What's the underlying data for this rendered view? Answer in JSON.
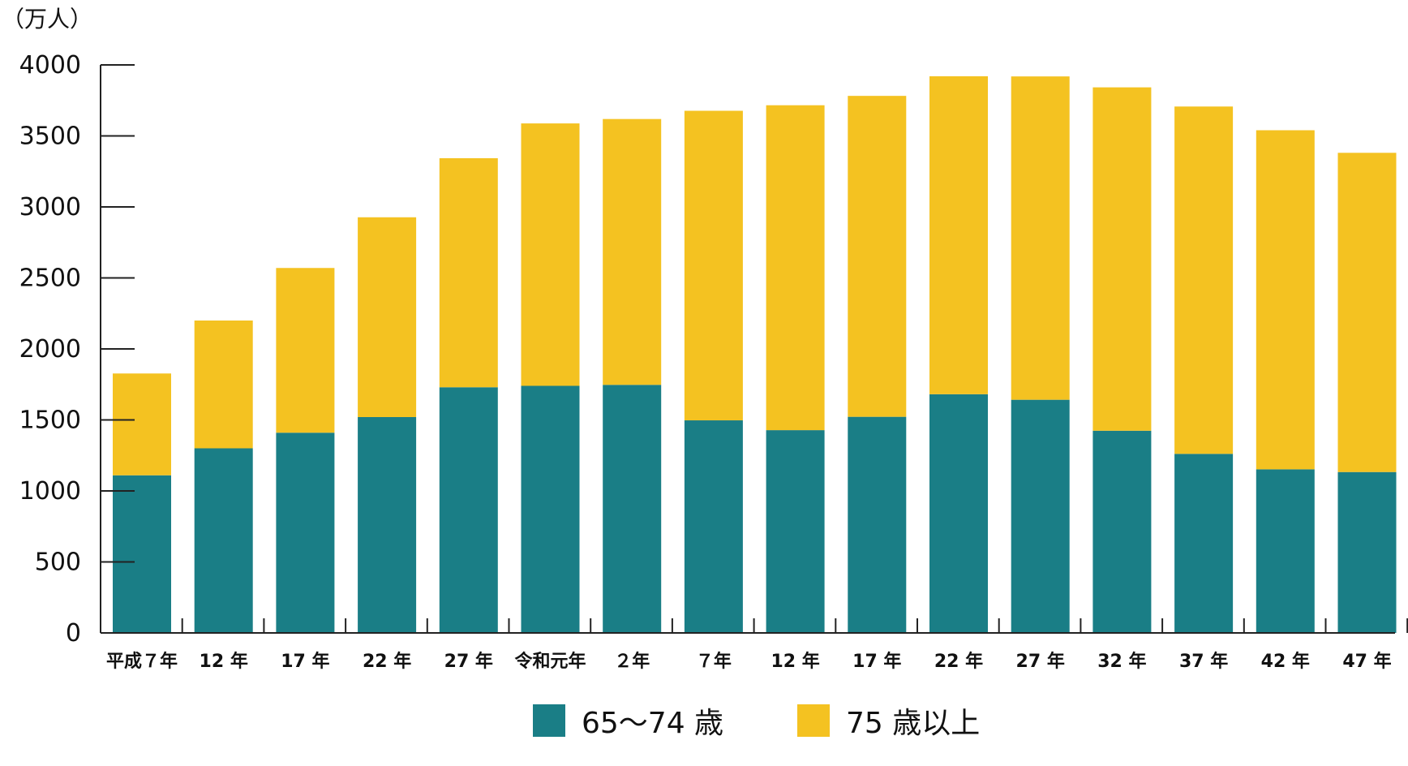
{
  "chart_data": {
    "type": "bar",
    "stacked": true,
    "unit_label": "（万人）",
    "categories": [
      "平成７年",
      "12 年",
      "17 年",
      "22 年",
      "27 年",
      "令和元年",
      "２年",
      "７年",
      "12 年",
      "17 年",
      "22 年",
      "27 年",
      "32 年",
      "37 年",
      "42 年",
      "47 年"
    ],
    "series": [
      {
        "name": "65～74 歳",
        "color": "#1a7e86",
        "values": [
          1110,
          1300,
          1410,
          1520,
          1730,
          1740,
          1747,
          1497,
          1428,
          1522,
          1681,
          1642,
          1424,
          1261,
          1152,
          1133
        ]
      },
      {
        "name": "75 歳以上",
        "color": "#f4c221",
        "values": [
          717,
          900,
          1160,
          1407,
          1613,
          1848,
          1872,
          2180,
          2288,
          2260,
          2239,
          2277,
          2418,
          2446,
          2388,
          2248
        ]
      }
    ],
    "ylim": [
      0,
      4000
    ],
    "yticks": [
      0,
      500,
      1000,
      1500,
      2000,
      2500,
      3000,
      3500,
      4000
    ],
    "ytick_labels": [
      "0",
      "500",
      "1000",
      "1500",
      "2000",
      "2500",
      "3000",
      "3500",
      "4000"
    ],
    "grid": false,
    "legend_position": "bottom"
  }
}
